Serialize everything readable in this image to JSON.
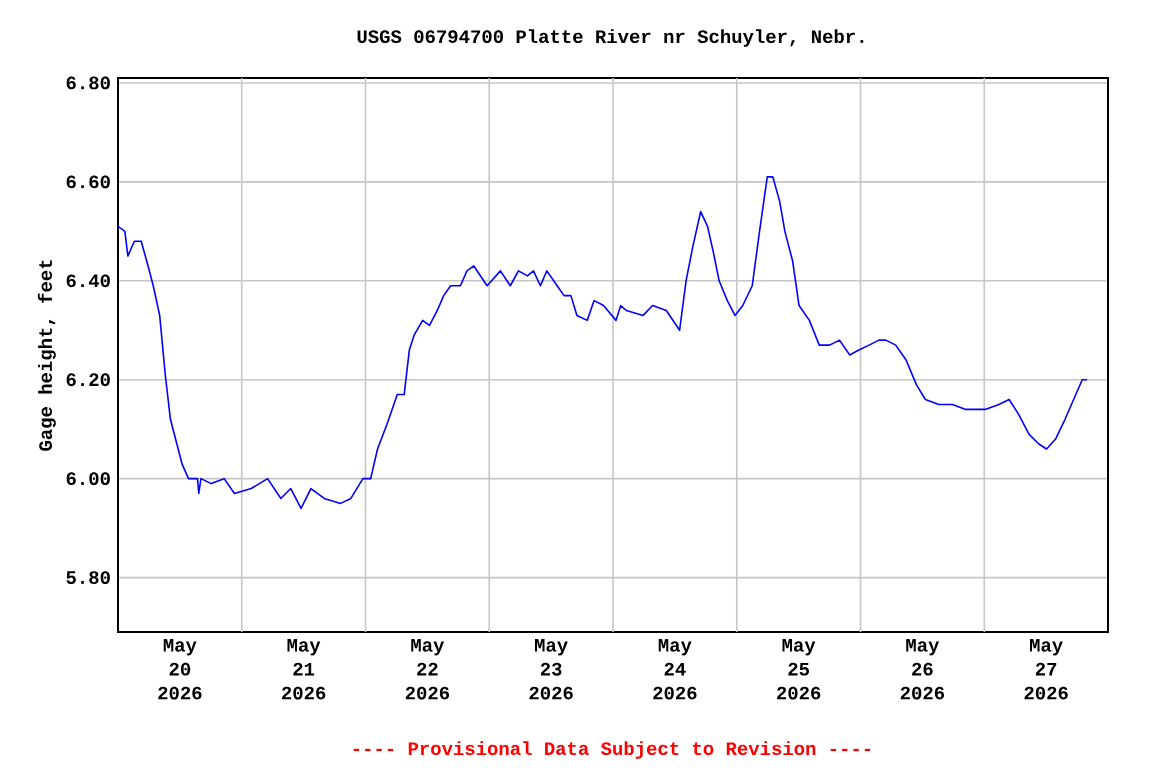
{
  "chart_data": {
    "type": "line",
    "title": "USGS 06794700 Platte River nr Schuyler, Nebr.",
    "ylabel": "Gage height, feet",
    "annotations": [
      "---- Provisional Data Subject to Revision ----"
    ],
    "xlim": [
      "2026-05-20T00:00",
      "2026-05-28T00:00"
    ],
    "xticks": [
      {
        "value": "2026-05-20T12:00",
        "label": "May 20 2026"
      },
      {
        "value": "2026-05-21T00:00",
        "label": null
      },
      {
        "value": "2026-05-21T12:00",
        "label": "May 21 2026"
      },
      {
        "value": "2026-05-22T00:00",
        "label": null
      },
      {
        "value": "2026-05-22T12:00",
        "label": "May 22 2026"
      },
      {
        "value": "2026-05-23T00:00",
        "label": null
      },
      {
        "value": "2026-05-23T12:00",
        "label": "May 23 2026"
      },
      {
        "value": "2026-05-24T00:00",
        "label": null
      },
      {
        "value": "2026-05-24T12:00",
        "label": "May 24 2026"
      },
      {
        "value": "2026-05-25T00:00",
        "label": null
      },
      {
        "value": "2026-05-25T12:00",
        "label": "May 25 2026"
      },
      {
        "value": "2026-05-26T00:00",
        "label": null
      },
      {
        "value": "2026-05-26T12:00",
        "label": "May 26 2026"
      },
      {
        "value": "2026-05-27T00:00",
        "label": null
      },
      {
        "value": "2026-05-27T12:00",
        "label": "May 27 2026"
      }
    ],
    "ylim": [
      5.69,
      6.81
    ],
    "yticks": [
      {
        "value": 5.8,
        "label": "5.80"
      },
      {
        "value": 6.0,
        "label": "6.00"
      },
      {
        "value": 6.2,
        "label": "6.20"
      },
      {
        "value": 6.4,
        "label": "6.40"
      },
      {
        "value": 6.6,
        "label": "6.60"
      },
      {
        "value": 6.8,
        "label": "6.80"
      }
    ],
    "grid": true,
    "x": [
      "2026-05-20T00:00",
      "2026-05-20T01:20",
      "2026-05-20T01:55",
      "2026-05-20T03:10",
      "2026-05-20T04:30",
      "2026-05-20T05:50",
      "2026-05-20T06:50",
      "2026-05-20T08:05",
      "2026-05-20T09:10",
      "2026-05-20T10:10",
      "2026-05-20T11:25",
      "2026-05-20T12:25",
      "2026-05-20T13:40",
      "2026-05-20T15:25",
      "2026-05-20T15:40",
      "2026-05-20T16:05",
      "2026-05-20T18:05",
      "2026-05-20T20:35",
      "2026-05-20T22:35",
      "2026-05-21T01:50",
      "2026-05-21T05:00",
      "2026-05-21T07:35",
      "2026-05-21T09:30",
      "2026-05-21T11:30",
      "2026-05-21T13:25",
      "2026-05-21T16:00",
      "2026-05-21T19:10",
      "2026-05-21T21:10",
      "2026-05-21T23:30",
      "2026-05-22T01:00",
      "2026-05-22T02:20",
      "2026-05-22T04:10",
      "2026-05-22T06:10",
      "2026-05-22T07:30",
      "2026-05-22T08:30",
      "2026-05-22T09:25",
      "2026-05-22T11:05",
      "2026-05-22T12:25",
      "2026-05-22T13:55",
      "2026-05-22T15:10",
      "2026-05-22T16:30",
      "2026-05-22T18:25",
      "2026-05-22T19:40",
      "2026-05-22T21:00",
      "2026-05-22T23:35",
      "2026-05-23T02:10",
      "2026-05-23T04:05",
      "2026-05-23T05:40",
      "2026-05-23T07:25",
      "2026-05-23T08:35",
      "2026-05-23T09:55",
      "2026-05-23T11:10",
      "2026-05-23T13:10",
      "2026-05-23T14:30",
      "2026-05-23T15:50",
      "2026-05-23T17:00",
      "2026-05-23T19:00",
      "2026-05-23T20:20",
      "2026-05-23T22:10",
      "2026-05-24T00:35",
      "2026-05-24T01:30",
      "2026-05-24T02:35",
      "2026-05-24T05:50",
      "2026-05-24T07:40",
      "2026-05-24T10:20",
      "2026-05-24T12:55",
      "2026-05-24T14:10",
      "2026-05-24T15:30",
      "2026-05-24T17:00",
      "2026-05-24T18:20",
      "2026-05-24T19:25",
      "2026-05-24T20:35",
      "2026-05-24T22:10",
      "2026-05-24T23:40",
      "2026-05-25T01:10",
      "2026-05-25T03:00",
      "2026-05-25T04:25",
      "2026-05-25T05:55",
      "2026-05-25T07:00",
      "2026-05-25T08:20",
      "2026-05-25T09:20",
      "2026-05-25T10:50",
      "2026-05-25T12:05",
      "2026-05-25T14:05",
      "2026-05-25T16:00",
      "2026-05-25T18:00",
      "2026-05-25T19:55",
      "2026-05-25T21:55",
      "2026-05-25T23:40",
      "2026-05-26T01:40",
      "2026-05-26T03:35",
      "2026-05-26T04:55",
      "2026-05-26T06:50",
      "2026-05-26T08:50",
      "2026-05-26T10:50",
      "2026-05-26T12:35",
      "2026-05-26T15:10",
      "2026-05-26T17:50",
      "2026-05-26T20:25",
      "2026-05-27T00:10",
      "2026-05-27T02:50",
      "2026-05-27T04:50",
      "2026-05-27T06:40",
      "2026-05-27T08:40",
      "2026-05-27T10:35",
      "2026-05-27T12:05",
      "2026-05-27T13:50",
      "2026-05-27T15:40",
      "2026-05-27T17:20",
      "2026-05-27T19:00",
      "2026-05-27T19:55"
    ],
    "series": [
      {
        "color": "#0000ff",
        "values": [
          6.51,
          6.5,
          6.45,
          6.48,
          6.48,
          6.43,
          6.39,
          6.33,
          6.21,
          6.12,
          6.07,
          6.03,
          6.0,
          6.0,
          5.97,
          6.0,
          5.99,
          6.0,
          5.97,
          5.98,
          6.0,
          5.96,
          5.98,
          5.94,
          5.98,
          5.96,
          5.95,
          5.96,
          6.0,
          6.0,
          6.06,
          6.11,
          6.17,
          6.17,
          6.26,
          6.29,
          6.32,
          6.31,
          6.34,
          6.37,
          6.39,
          6.39,
          6.42,
          6.43,
          6.39,
          6.42,
          6.39,
          6.42,
          6.41,
          6.42,
          6.39,
          6.42,
          6.39,
          6.37,
          6.37,
          6.33,
          6.32,
          6.36,
          6.35,
          6.32,
          6.35,
          6.34,
          6.33,
          6.35,
          6.34,
          6.3,
          6.4,
          6.47,
          6.54,
          6.51,
          6.46,
          6.4,
          6.36,
          6.33,
          6.35,
          6.39,
          6.5,
          6.61,
          6.61,
          6.56,
          6.5,
          6.44,
          6.35,
          6.32,
          6.27,
          6.27,
          6.28,
          6.25,
          6.26,
          6.27,
          6.28,
          6.28,
          6.27,
          6.24,
          6.19,
          6.16,
          6.15,
          6.15,
          6.14,
          6.14,
          6.15,
          6.16,
          6.13,
          6.09,
          6.07,
          6.06,
          6.08,
          6.12,
          6.16,
          6.2,
          6.2
        ]
      }
    ]
  }
}
